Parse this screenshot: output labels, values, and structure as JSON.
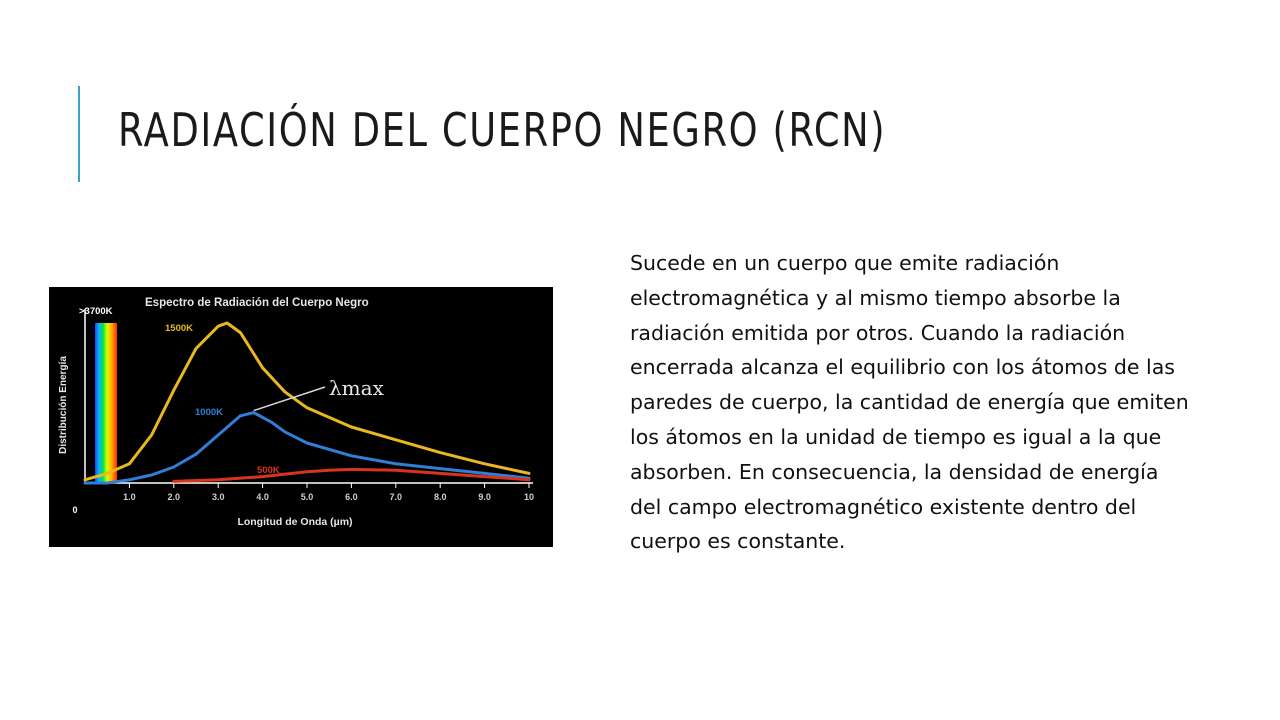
{
  "slide": {
    "title": "RADIACIÓN DEL CUERPO NEGRO (RCN)",
    "body": "Sucede en un cuerpo que emite radiación electromagnética y al mismo tiempo absorbe la radiación emitida por otros. Cuando la radiación encerrada alcanza el equilibrio con los átomos de las paredes de cuerpo, la cantidad de energía que emiten los átomos en la unidad de tiempo es igual a la que absorben. En consecuencia, la densidad de energía del campo electromagnético existente dentro del cuerpo es constante.",
    "accent_color": "#3aa0c8"
  },
  "chart_data": {
    "type": "line",
    "title": "Espectro de Radiación del Cuerpo Negro",
    "xlabel": "Longitud de Onda (µm)",
    "ylabel": "Distribución Energía",
    "origin_label": "0",
    "x_ticks": [
      "1.0",
      "2.0",
      "3.0",
      "4.0",
      "5.0",
      "6.0",
      "7.0",
      "8.0",
      "9.0",
      "10"
    ],
    "xlim": [
      0,
      10
    ],
    "ylim": [
      0,
      100
    ],
    "spectrum_label": ">3700K",
    "annotation": "λmax",
    "series": [
      {
        "name": "1500K",
        "color": "#e8b820",
        "x": [
          0.0,
          0.5,
          1.0,
          1.5,
          2.0,
          2.5,
          3.0,
          3.2,
          3.5,
          4.0,
          4.5,
          5.0,
          6.0,
          7.0,
          8.0,
          9.0,
          10.0
        ],
        "y": [
          2,
          6,
          12,
          30,
          58,
          84,
          98,
          100,
          94,
          72,
          57,
          47,
          35,
          27,
          19,
          12,
          6
        ]
      },
      {
        "name": "1000K",
        "color": "#2f7fd6",
        "x": [
          0.0,
          0.5,
          1.0,
          1.5,
          2.0,
          2.5,
          3.0,
          3.5,
          3.8,
          4.2,
          4.5,
          5.0,
          6.0,
          7.0,
          8.0,
          9.0,
          10.0
        ],
        "y": [
          0,
          0,
          2,
          5,
          10,
          18,
          30,
          42,
          44,
          38,
          32,
          25,
          17,
          12,
          9,
          6,
          3
        ]
      },
      {
        "name": "500K",
        "color": "#d8341c",
        "x": [
          2.0,
          3.0,
          4.0,
          5.0,
          5.5,
          6.0,
          7.0,
          8.0,
          9.0,
          10.0
        ],
        "y": [
          1,
          2,
          4,
          7,
          8,
          8.5,
          8,
          6,
          4,
          2
        ]
      }
    ]
  }
}
